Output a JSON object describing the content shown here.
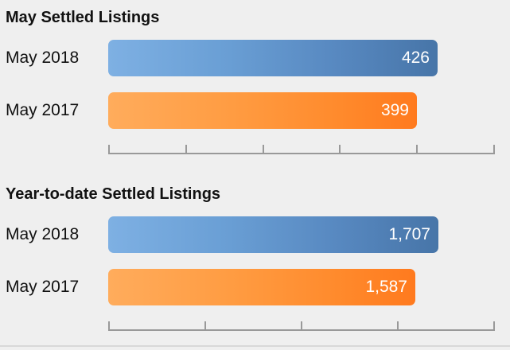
{
  "chart_data": [
    {
      "type": "bar",
      "orientation": "horizontal",
      "title": "May Settled Listings",
      "categories": [
        "May 2018",
        "May 2017"
      ],
      "values": [
        426,
        399
      ],
      "value_labels": [
        "426",
        "399"
      ],
      "colors": [
        "#5a8cc4",
        "#ff8f33"
      ],
      "xlim": [
        0,
        500
      ],
      "tick_count": 6,
      "grid": false,
      "legend": "none"
    },
    {
      "type": "bar",
      "orientation": "horizontal",
      "title": "Year-to-date Settled Listings",
      "categories": [
        "May 2018",
        "May 2017"
      ],
      "values": [
        1707,
        1587
      ],
      "value_labels": [
        "1,707",
        "1,587"
      ],
      "colors": [
        "#5a8cc4",
        "#ff8f33"
      ],
      "xlim": [
        0,
        2000
      ],
      "tick_count": 5,
      "grid": false,
      "legend": "none"
    }
  ]
}
